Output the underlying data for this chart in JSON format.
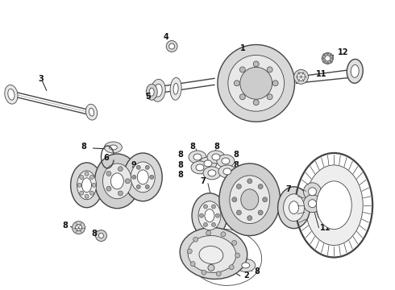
{
  "bg": "#ffffff",
  "lc": "#444444",
  "lc_dark": "#111111",
  "fig_w": 4.9,
  "fig_h": 3.6,
  "dpi": 100,
  "fs": 7,
  "fw": "bold"
}
